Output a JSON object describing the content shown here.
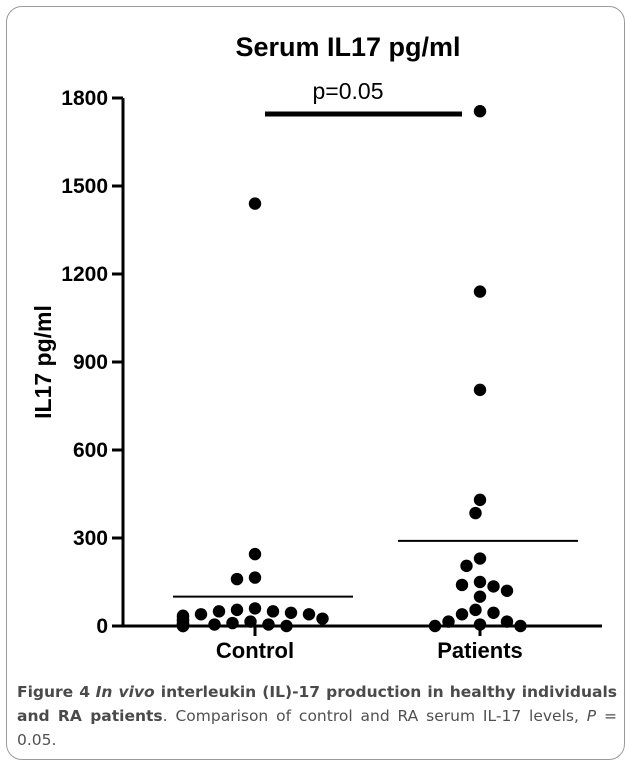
{
  "chart_data": {
    "type": "scatter",
    "title": "Serum IL17 pg/ml",
    "ylabel": "IL17 pg/ml",
    "xlabel": "",
    "categories": [
      "Control",
      "Patients"
    ],
    "ylim": [
      0,
      1800
    ],
    "yticks": [
      "0",
      "300",
      "600",
      "900",
      "1200",
      "1500",
      "1800"
    ],
    "annotation": "p=0.05",
    "grid": false,
    "series": [
      {
        "category": "Control",
        "mean": 100,
        "values": [
          1440,
          245,
          165,
          160,
          60,
          55,
          50,
          50,
          45,
          40,
          40,
          35,
          30,
          25,
          20,
          20,
          15,
          10,
          10,
          5,
          5,
          5,
          5,
          0,
          0,
          0
        ]
      },
      {
        "category": "Patients",
        "mean": 290,
        "values": [
          1755,
          1140,
          805,
          430,
          385,
          230,
          205,
          150,
          140,
          135,
          120,
          100,
          55,
          45,
          40,
          15,
          15,
          5,
          0,
          0
        ]
      }
    ]
  },
  "caption": {
    "label": "Figure 4",
    "title_italic": "In vivo",
    "title_rest": " interleukin (IL)-17 production in healthy individuals and RA patients",
    "body_pre": ". Comparison of control and RA serum IL-17 levels, ",
    "p_symbol": "P",
    "body_post": " = 0.05."
  }
}
